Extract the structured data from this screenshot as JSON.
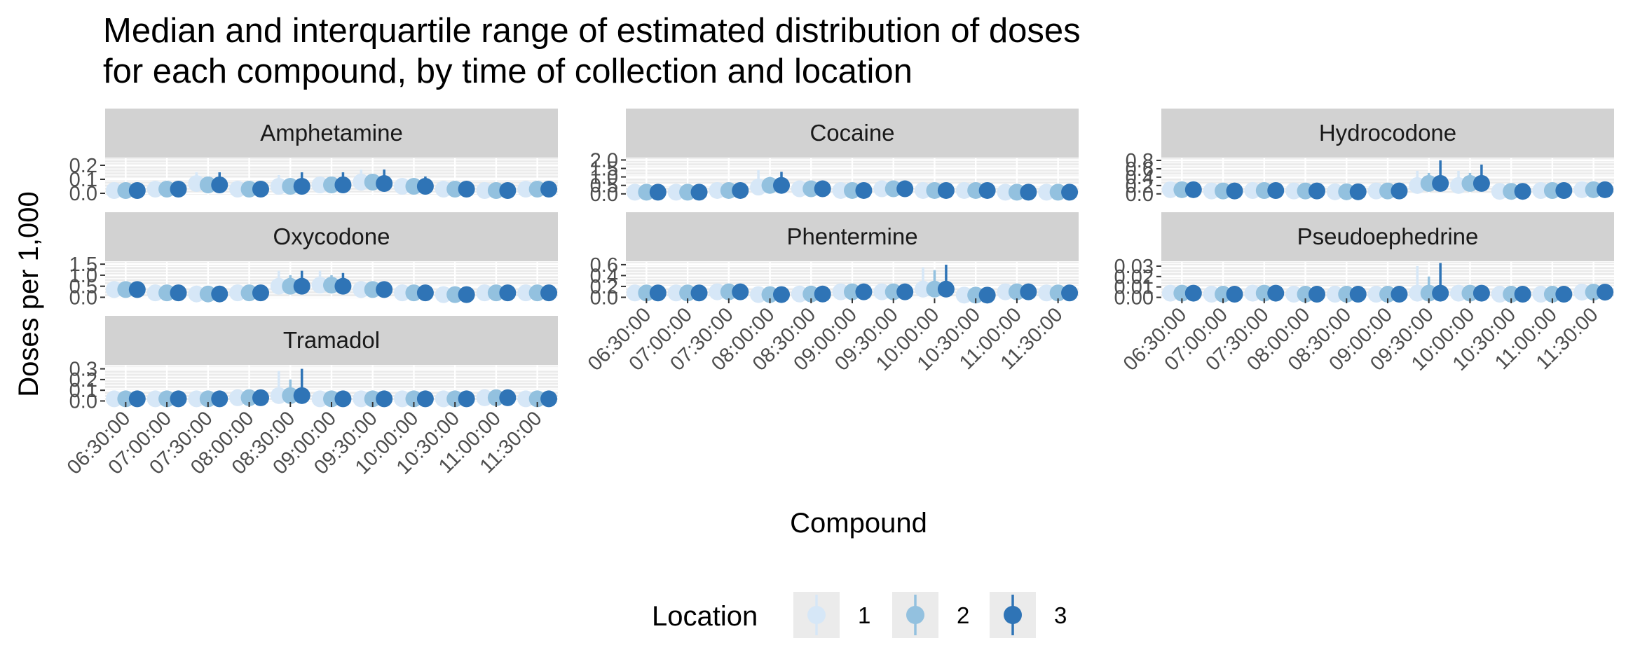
{
  "chart_data": {
    "type": "scatter",
    "title": "Median and interquartile range of estimated distribution of doses",
    "subtitle": "for each compound, by time of collection and location",
    "xlabel": "Compound",
    "ylabel": "Doses per 1,000",
    "grid": true,
    "legend": {
      "title": "Location",
      "placement": "bottom",
      "entries": [
        {
          "label": "1",
          "color": "#d6e7f7"
        },
        {
          "label": "2",
          "color": "#93c1df"
        },
        {
          "label": "3",
          "color": "#2f74b6"
        }
      ]
    },
    "x_categories": [
      "06:30:00",
      "07:00:00",
      "07:30:00",
      "08:00:00",
      "08:30:00",
      "09:00:00",
      "09:30:00",
      "10:00:00",
      "10:30:00",
      "11:00:00",
      "11:30:00"
    ],
    "panels": [
      {
        "name": "Amphetamine",
        "y_ticks": [
          "0.0",
          "0.1",
          "0.2"
        ],
        "ylim": [
          -0.01,
          0.25
        ],
        "series": [
          {
            "name": "1",
            "median": [
              0.02,
              0.03,
              0.07,
              0.03,
              0.05,
              0.06,
              0.08,
              0.05,
              0.03,
              0.02,
              0.03
            ],
            "lower": [
              0.01,
              0.02,
              0.03,
              0.02,
              0.02,
              0.03,
              0.04,
              0.02,
              0.02,
              0.01,
              0.02
            ],
            "upper": [
              0.04,
              0.05,
              0.15,
              0.05,
              0.13,
              0.12,
              0.17,
              0.1,
              0.05,
              0.04,
              0.05
            ]
          },
          {
            "name": "2",
            "median": [
              0.02,
              0.03,
              0.06,
              0.03,
              0.05,
              0.06,
              0.08,
              0.05,
              0.03,
              0.02,
              0.03
            ],
            "lower": [
              0.01,
              0.02,
              0.03,
              0.02,
              0.02,
              0.03,
              0.04,
              0.02,
              0.02,
              0.01,
              0.02
            ],
            "upper": [
              0.04,
              0.05,
              0.12,
              0.05,
              0.1,
              0.1,
              0.13,
              0.09,
              0.05,
              0.04,
              0.05
            ]
          },
          {
            "name": "3",
            "median": [
              0.02,
              0.03,
              0.06,
              0.03,
              0.05,
              0.06,
              0.07,
              0.05,
              0.03,
              0.02,
              0.03
            ],
            "lower": [
              0.01,
              0.02,
              0.03,
              0.02,
              0.02,
              0.03,
              0.04,
              0.02,
              0.02,
              0.01,
              0.02
            ],
            "upper": [
              0.04,
              0.05,
              0.15,
              0.05,
              0.15,
              0.15,
              0.17,
              0.12,
              0.05,
              0.04,
              0.05
            ]
          }
        ]
      },
      {
        "name": "Cocaine",
        "y_ticks": [
          "0.0",
          "0.5",
          "1.0",
          "1.5",
          "2.0"
        ],
        "ylim": [
          -0.05,
          2.1
        ],
        "series": [
          {
            "name": "1",
            "median": [
              0.1,
              0.1,
              0.2,
              0.4,
              0.3,
              0.2,
              0.3,
              0.2,
              0.2,
              0.1,
              0.1
            ],
            "lower": [
              0.05,
              0.05,
              0.1,
              0.2,
              0.1,
              0.1,
              0.15,
              0.1,
              0.1,
              0.05,
              0.05
            ],
            "upper": [
              0.2,
              0.2,
              0.4,
              1.4,
              0.6,
              0.4,
              0.6,
              0.4,
              0.4,
              0.2,
              0.2
            ]
          },
          {
            "name": "2",
            "median": [
              0.1,
              0.1,
              0.2,
              0.5,
              0.3,
              0.2,
              0.3,
              0.2,
              0.2,
              0.1,
              0.1
            ],
            "lower": [
              0.05,
              0.05,
              0.1,
              0.2,
              0.1,
              0.1,
              0.15,
              0.1,
              0.1,
              0.05,
              0.05
            ],
            "upper": [
              0.2,
              0.2,
              0.4,
              1.0,
              0.6,
              0.4,
              0.6,
              0.4,
              0.4,
              0.2,
              0.2
            ]
          },
          {
            "name": "3",
            "median": [
              0.1,
              0.1,
              0.2,
              0.5,
              0.3,
              0.2,
              0.3,
              0.2,
              0.2,
              0.1,
              0.1
            ],
            "lower": [
              0.05,
              0.05,
              0.1,
              0.2,
              0.1,
              0.1,
              0.15,
              0.1,
              0.1,
              0.05,
              0.05
            ],
            "upper": [
              0.2,
              0.2,
              0.4,
              1.3,
              0.6,
              0.4,
              0.6,
              0.4,
              0.4,
              0.2,
              0.2
            ]
          }
        ]
      },
      {
        "name": "Hydrocodone",
        "y_ticks": [
          "0.0",
          "0.2",
          "0.4",
          "0.6",
          "0.8"
        ],
        "ylim": [
          -0.02,
          0.85
        ],
        "series": [
          {
            "name": "1",
            "median": [
              0.1,
              0.07,
              0.08,
              0.07,
              0.05,
              0.07,
              0.2,
              0.2,
              0.06,
              0.08,
              0.1
            ],
            "lower": [
              0.05,
              0.03,
              0.04,
              0.03,
              0.02,
              0.03,
              0.1,
              0.1,
              0.03,
              0.04,
              0.05
            ],
            "upper": [
              0.18,
              0.12,
              0.15,
              0.12,
              0.1,
              0.12,
              0.55,
              0.55,
              0.1,
              0.15,
              0.18
            ]
          },
          {
            "name": "2",
            "median": [
              0.1,
              0.07,
              0.08,
              0.07,
              0.05,
              0.07,
              0.25,
              0.25,
              0.06,
              0.08,
              0.1
            ],
            "lower": [
              0.05,
              0.03,
              0.04,
              0.03,
              0.02,
              0.03,
              0.1,
              0.1,
              0.03,
              0.04,
              0.05
            ],
            "upper": [
              0.18,
              0.12,
              0.15,
              0.12,
              0.1,
              0.12,
              0.5,
              0.5,
              0.1,
              0.15,
              0.18
            ]
          },
          {
            "name": "3",
            "median": [
              0.1,
              0.07,
              0.08,
              0.07,
              0.05,
              0.07,
              0.25,
              0.25,
              0.06,
              0.08,
              0.1
            ],
            "lower": [
              0.05,
              0.03,
              0.04,
              0.03,
              0.02,
              0.03,
              0.1,
              0.1,
              0.03,
              0.04,
              0.05
            ],
            "upper": [
              0.18,
              0.12,
              0.15,
              0.12,
              0.1,
              0.12,
              0.8,
              0.7,
              0.1,
              0.15,
              0.18
            ]
          }
        ]
      },
      {
        "name": "Oxycodone",
        "y_ticks": [
          "0.0",
          "0.5",
          "1.0",
          "1.5"
        ],
        "ylim": [
          -0.05,
          1.6
        ],
        "series": [
          {
            "name": "1",
            "median": [
              0.35,
              0.2,
              0.15,
              0.2,
              0.5,
              0.55,
              0.35,
              0.2,
              0.12,
              0.2,
              0.2
            ],
            "lower": [
              0.15,
              0.1,
              0.08,
              0.1,
              0.2,
              0.25,
              0.15,
              0.1,
              0.06,
              0.1,
              0.1
            ],
            "upper": [
              0.7,
              0.4,
              0.3,
              0.4,
              1.2,
              1.2,
              0.7,
              0.4,
              0.25,
              0.4,
              0.4
            ]
          },
          {
            "name": "2",
            "median": [
              0.35,
              0.2,
              0.15,
              0.2,
              0.5,
              0.55,
              0.35,
              0.2,
              0.12,
              0.2,
              0.2
            ],
            "lower": [
              0.15,
              0.1,
              0.08,
              0.1,
              0.2,
              0.25,
              0.15,
              0.1,
              0.06,
              0.1,
              0.1
            ],
            "upper": [
              0.7,
              0.4,
              0.3,
              0.4,
              1.0,
              1.0,
              0.7,
              0.4,
              0.25,
              0.4,
              0.4
            ]
          },
          {
            "name": "3",
            "median": [
              0.35,
              0.2,
              0.15,
              0.2,
              0.5,
              0.5,
              0.35,
              0.2,
              0.12,
              0.2,
              0.2
            ],
            "lower": [
              0.15,
              0.1,
              0.08,
              0.1,
              0.2,
              0.25,
              0.15,
              0.1,
              0.06,
              0.1,
              0.1
            ],
            "upper": [
              0.7,
              0.4,
              0.3,
              0.4,
              1.2,
              1.1,
              0.7,
              0.4,
              0.25,
              0.4,
              0.4
            ]
          }
        ]
      },
      {
        "name": "Phentermine",
        "y_ticks": [
          "0.0",
          "0.2",
          "0.4",
          "0.6"
        ],
        "ylim": [
          -0.02,
          0.65
        ],
        "series": [
          {
            "name": "1",
            "median": [
              0.08,
              0.08,
              0.1,
              0.05,
              0.06,
              0.1,
              0.1,
              0.15,
              0.04,
              0.1,
              0.08
            ],
            "lower": [
              0.04,
              0.04,
              0.05,
              0.02,
              0.03,
              0.05,
              0.05,
              0.06,
              0.02,
              0.05,
              0.04
            ],
            "upper": [
              0.15,
              0.15,
              0.25,
              0.1,
              0.12,
              0.18,
              0.2,
              0.55,
              0.08,
              0.22,
              0.15
            ]
          },
          {
            "name": "2",
            "median": [
              0.08,
              0.08,
              0.1,
              0.05,
              0.06,
              0.1,
              0.1,
              0.15,
              0.04,
              0.1,
              0.08
            ],
            "lower": [
              0.04,
              0.04,
              0.05,
              0.02,
              0.03,
              0.05,
              0.05,
              0.06,
              0.02,
              0.05,
              0.04
            ],
            "upper": [
              0.15,
              0.15,
              0.2,
              0.1,
              0.12,
              0.18,
              0.2,
              0.5,
              0.08,
              0.2,
              0.15
            ]
          },
          {
            "name": "3",
            "median": [
              0.08,
              0.08,
              0.1,
              0.05,
              0.06,
              0.1,
              0.1,
              0.15,
              0.04,
              0.1,
              0.08
            ],
            "lower": [
              0.04,
              0.04,
              0.05,
              0.02,
              0.03,
              0.05,
              0.05,
              0.06,
              0.02,
              0.05,
              0.04
            ],
            "upper": [
              0.15,
              0.15,
              0.25,
              0.1,
              0.12,
              0.18,
              0.2,
              0.6,
              0.08,
              0.25,
              0.15
            ]
          }
        ]
      },
      {
        "name": "Pseudoephedrine",
        "y_ticks": [
          "0.00",
          "0.01",
          "0.02",
          "0.03"
        ],
        "ylim": [
          -0.001,
          0.034
        ],
        "series": [
          {
            "name": "1",
            "median": [
              0.004,
              0.003,
              0.004,
              0.003,
              0.003,
              0.003,
              0.004,
              0.004,
              0.003,
              0.003,
              0.005
            ],
            "lower": [
              0.002,
              0.001,
              0.002,
              0.001,
              0.001,
              0.001,
              0.002,
              0.002,
              0.001,
              0.001,
              0.002
            ],
            "upper": [
              0.008,
              0.006,
              0.009,
              0.008,
              0.006,
              0.006,
              0.03,
              0.009,
              0.006,
              0.006,
              0.01
            ]
          },
          {
            "name": "2",
            "median": [
              0.004,
              0.003,
              0.004,
              0.003,
              0.003,
              0.003,
              0.004,
              0.004,
              0.003,
              0.003,
              0.005
            ],
            "lower": [
              0.002,
              0.001,
              0.002,
              0.001,
              0.001,
              0.001,
              0.002,
              0.002,
              0.001,
              0.001,
              0.002
            ],
            "upper": [
              0.008,
              0.006,
              0.009,
              0.008,
              0.006,
              0.006,
              0.02,
              0.009,
              0.006,
              0.006,
              0.01
            ]
          },
          {
            "name": "3",
            "median": [
              0.004,
              0.003,
              0.004,
              0.003,
              0.003,
              0.003,
              0.004,
              0.004,
              0.003,
              0.003,
              0.005
            ],
            "lower": [
              0.002,
              0.001,
              0.002,
              0.001,
              0.001,
              0.001,
              0.002,
              0.002,
              0.001,
              0.001,
              0.002
            ],
            "upper": [
              0.008,
              0.006,
              0.009,
              0.008,
              0.006,
              0.006,
              0.033,
              0.009,
              0.006,
              0.006,
              0.01
            ]
          }
        ]
      },
      {
        "name": "Tramadol",
        "y_ticks": [
          "0.0",
          "0.1",
          "0.2",
          "0.3"
        ],
        "ylim": [
          -0.01,
          0.33
        ],
        "series": [
          {
            "name": "1",
            "median": [
              0.02,
              0.02,
              0.02,
              0.03,
              0.05,
              0.02,
              0.02,
              0.02,
              0.02,
              0.03,
              0.02
            ],
            "lower": [
              0.01,
              0.01,
              0.01,
              0.015,
              0.02,
              0.01,
              0.01,
              0.01,
              0.01,
              0.015,
              0.01
            ],
            "upper": [
              0.04,
              0.04,
              0.04,
              0.06,
              0.28,
              0.04,
              0.04,
              0.04,
              0.04,
              0.06,
              0.04
            ]
          },
          {
            "name": "2",
            "median": [
              0.02,
              0.02,
              0.02,
              0.03,
              0.05,
              0.02,
              0.02,
              0.02,
              0.02,
              0.03,
              0.02
            ],
            "lower": [
              0.01,
              0.01,
              0.01,
              0.015,
              0.02,
              0.01,
              0.01,
              0.01,
              0.01,
              0.015,
              0.01
            ],
            "upper": [
              0.04,
              0.04,
              0.04,
              0.06,
              0.2,
              0.04,
              0.04,
              0.04,
              0.04,
              0.06,
              0.04
            ]
          },
          {
            "name": "3",
            "median": [
              0.02,
              0.02,
              0.02,
              0.03,
              0.05,
              0.02,
              0.02,
              0.02,
              0.02,
              0.03,
              0.02
            ],
            "lower": [
              0.01,
              0.01,
              0.01,
              0.015,
              0.02,
              0.01,
              0.01,
              0.01,
              0.01,
              0.015,
              0.01
            ],
            "upper": [
              0.04,
              0.04,
              0.04,
              0.07,
              0.3,
              0.04,
              0.04,
              0.04,
              0.04,
              0.07,
              0.04
            ]
          }
        ]
      }
    ]
  }
}
